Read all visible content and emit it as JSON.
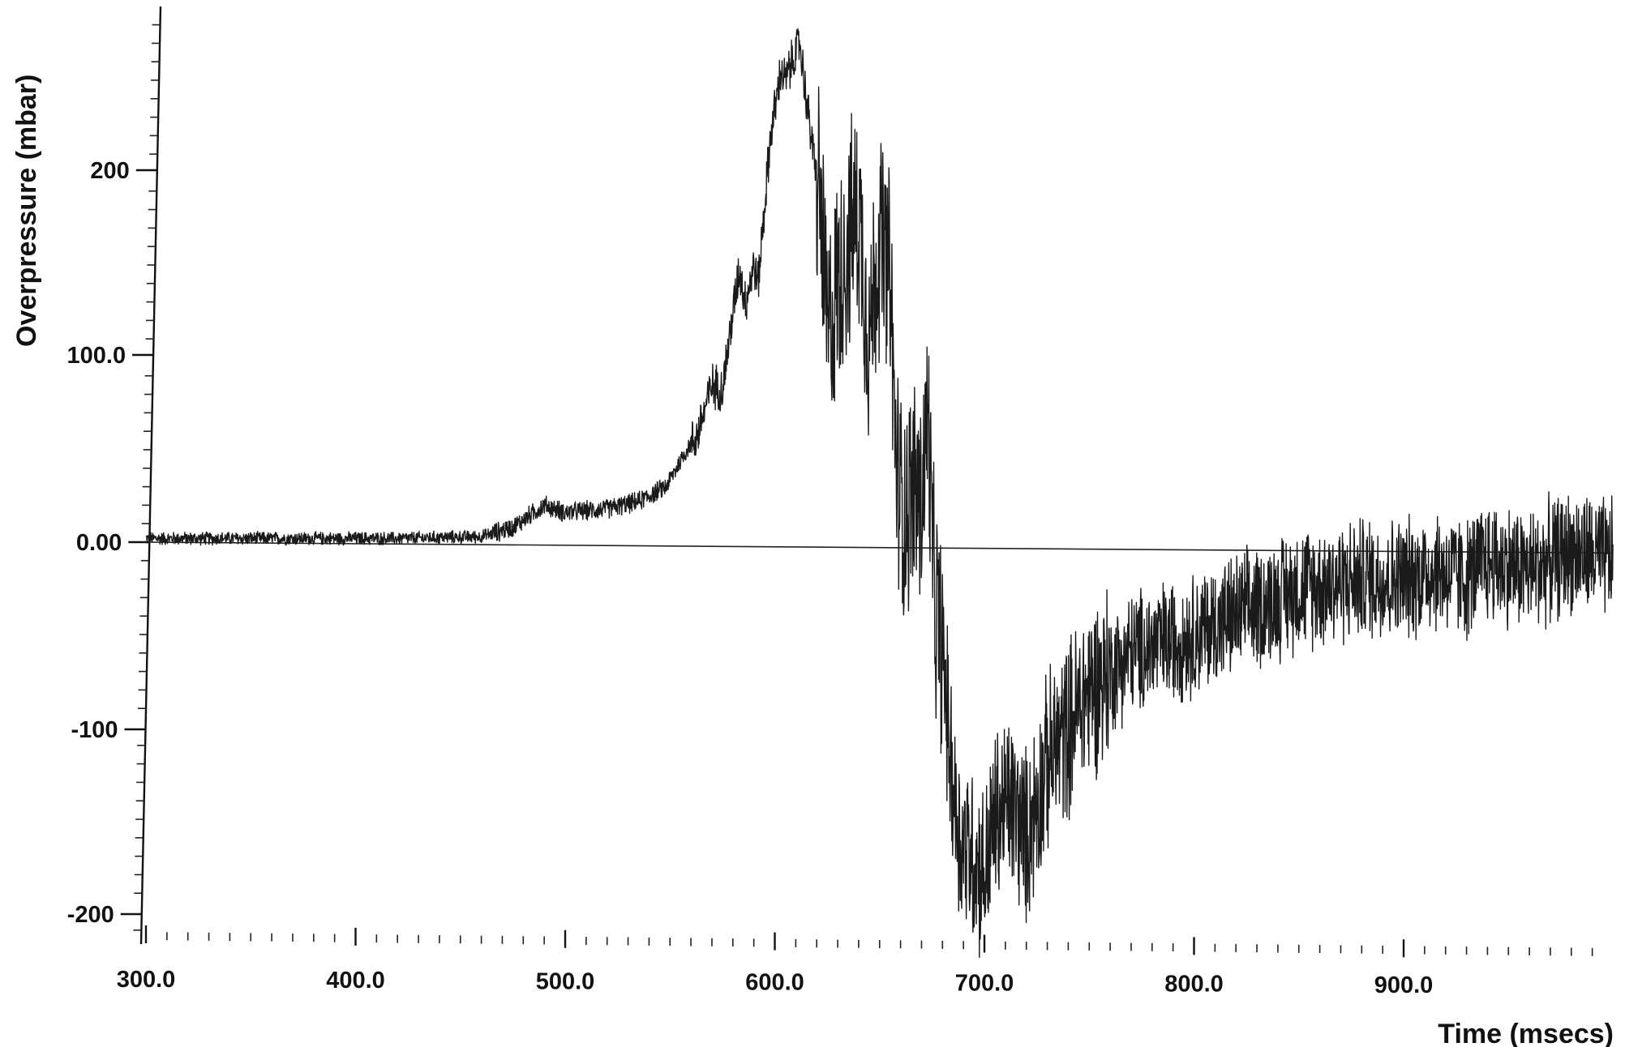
{
  "chart_data": {
    "type": "line",
    "xlabel": "Time (msecs)",
    "ylabel": "Overpressure (mbar)",
    "xlim": [
      300.0,
      1000.0
    ],
    "ylim": [
      -210,
      290
    ],
    "grid": false,
    "x_ticks": [
      "300.0",
      "400.0",
      "500.0",
      "600.0",
      "700.0",
      "800.0",
      "900.0"
    ],
    "y_ticks": [
      "200",
      "100.0",
      "0.00",
      "-100",
      "-200"
    ],
    "x_tick_values": [
      300,
      400,
      500,
      600,
      700,
      800,
      900
    ],
    "y_tick_values": [
      200,
      100,
      0,
      -100,
      -200
    ],
    "reference_line": {
      "from": [
        300,
        0
      ],
      "to": [
        1000,
        -5
      ]
    },
    "series": [
      {
        "x": [
          300,
          420,
          460,
          475,
          490,
          500,
          520,
          535,
          548,
          558,
          563,
          570,
          575,
          583,
          586,
          590,
          592,
          598,
          603,
          605,
          610,
          612,
          615,
          622,
          625,
          632,
          640,
          645,
          650,
          655,
          658,
          662,
          666,
          670,
          673,
          676,
          680,
          684,
          688,
          695,
          700,
          705,
          712,
          720,
          730,
          750,
          770,
          800,
          830,
          850,
          880,
          900,
          915,
          925,
          930,
          940,
          960,
          980,
          1000
        ],
        "y": [
          2,
          2,
          3,
          8,
          20,
          16,
          18,
          22,
          30,
          50,
          58,
          85,
          83,
          148,
          130,
          150,
          140,
          220,
          255,
          250,
          265,
          270,
          240,
          180,
          110,
          150,
          180,
          110,
          165,
          140,
          40,
          15,
          30,
          20,
          70,
          -30,
          -60,
          -120,
          -160,
          -170,
          -180,
          -150,
          -140,
          -160,
          -120,
          -80,
          -60,
          -50,
          -35,
          -25,
          -20,
          -20,
          -15,
          -18,
          -20,
          -10,
          -15,
          -5,
          -10
        ]
      }
    ]
  }
}
